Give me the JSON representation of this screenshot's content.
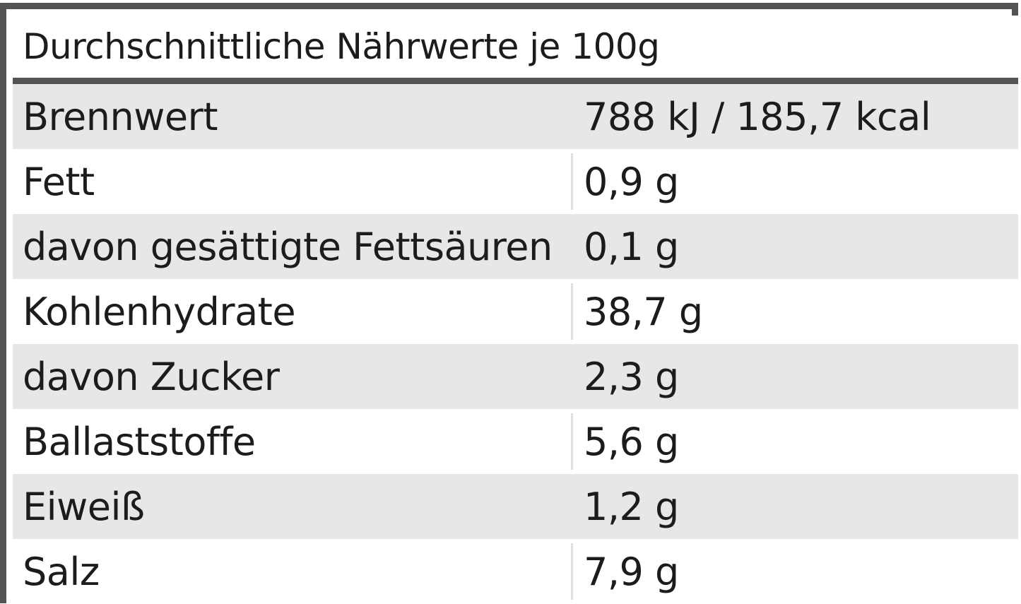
{
  "table": {
    "title": "Durchschnittliche Nährwerte je 100g",
    "rows": [
      {
        "label": "Brennwert",
        "value": "788 kJ / 185,7 kcal"
      },
      {
        "label": "Fett",
        "value": "0,9 g"
      },
      {
        "label": "davon gesättigte Fettsäuren",
        "value": "0,1 g"
      },
      {
        "label": "Kohlenhydrate",
        "value": "38,7 g"
      },
      {
        "label": "davon Zucker",
        "value": "2,3 g"
      },
      {
        "label": "Ballaststoffe",
        "value": "5,6 g"
      },
      {
        "label": "Eiweiß",
        "value": "1,2 g"
      },
      {
        "label": "Salz",
        "value": "7,9 g"
      }
    ]
  },
  "colors": {
    "border": "#545454",
    "shaded_row": "#e7e7e7",
    "plain_row": "#ffffff",
    "text": "#1c1c1c"
  }
}
